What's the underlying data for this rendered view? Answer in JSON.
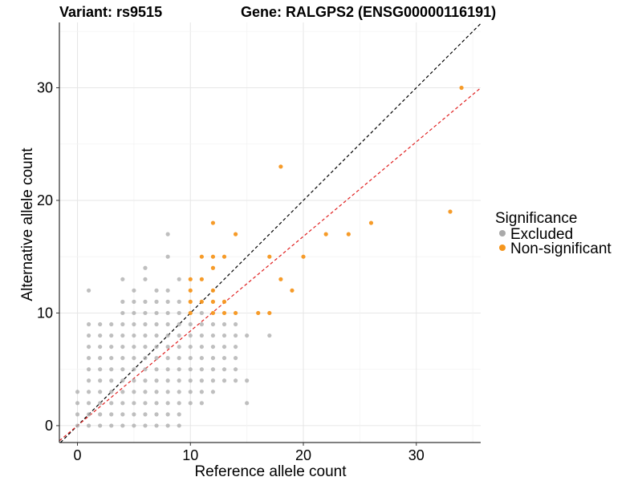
{
  "chart_data": {
    "type": "scatter",
    "title_left": "Variant: rs9515",
    "title_right": "Gene: RALGPS2 (ENSG00000116191)",
    "xlabel": "Reference allele count",
    "ylabel": "Alternative allele count",
    "xlim": [
      -1.6,
      35.7
    ],
    "ylim": [
      -1.5,
      35.8
    ],
    "x_ticks": [
      0,
      10,
      20,
      30
    ],
    "y_ticks": [
      0,
      10,
      20,
      30
    ],
    "grid": true,
    "legend": {
      "title": "Significance",
      "position": "right",
      "entries": [
        {
          "label": "Excluded",
          "color": "#aaaaaa"
        },
        {
          "label": "Non-significant",
          "color": "#f5961e"
        }
      ]
    },
    "reference_lines": [
      {
        "slope": 1,
        "intercept": 0,
        "color": "#000000",
        "dash": true
      },
      {
        "slope": 0.84,
        "intercept": 0,
        "color": "#e02020",
        "dash": true
      }
    ],
    "series": [
      {
        "name": "Excluded",
        "color": "#aaaaaa",
        "points": [
          [
            0,
            0
          ],
          [
            0,
            1
          ],
          [
            0,
            2
          ],
          [
            0,
            3
          ],
          [
            1,
            0
          ],
          [
            1,
            1
          ],
          [
            1,
            2
          ],
          [
            1,
            3
          ],
          [
            1,
            4
          ],
          [
            1,
            5
          ],
          [
            1,
            6
          ],
          [
            1,
            7
          ],
          [
            1,
            8
          ],
          [
            1,
            9
          ],
          [
            1,
            12
          ],
          [
            2,
            0
          ],
          [
            2,
            1
          ],
          [
            2,
            2
          ],
          [
            2,
            3
          ],
          [
            2,
            4
          ],
          [
            2,
            5
          ],
          [
            2,
            6
          ],
          [
            2,
            7
          ],
          [
            2,
            8
          ],
          [
            2,
            9
          ],
          [
            3,
            0
          ],
          [
            3,
            1
          ],
          [
            3,
            2
          ],
          [
            3,
            3
          ],
          [
            3,
            4
          ],
          [
            3,
            5
          ],
          [
            3,
            6
          ],
          [
            3,
            7
          ],
          [
            3,
            8
          ],
          [
            3,
            9
          ],
          [
            4,
            0
          ],
          [
            4,
            1
          ],
          [
            4,
            2
          ],
          [
            4,
            3
          ],
          [
            4,
            4
          ],
          [
            4,
            5
          ],
          [
            4,
            6
          ],
          [
            4,
            7
          ],
          [
            4,
            8
          ],
          [
            4,
            9
          ],
          [
            4,
            10
          ],
          [
            4,
            11
          ],
          [
            4,
            13
          ],
          [
            5,
            0
          ],
          [
            5,
            1
          ],
          [
            5,
            2
          ],
          [
            5,
            3
          ],
          [
            5,
            4
          ],
          [
            5,
            5
          ],
          [
            5,
            6
          ],
          [
            5,
            7
          ],
          [
            5,
            8
          ],
          [
            5,
            9
          ],
          [
            5,
            10
          ],
          [
            5,
            11
          ],
          [
            5,
            12
          ],
          [
            6,
            0
          ],
          [
            6,
            1
          ],
          [
            6,
            2
          ],
          [
            6,
            3
          ],
          [
            6,
            4
          ],
          [
            6,
            5
          ],
          [
            6,
            6
          ],
          [
            6,
            7
          ],
          [
            6,
            8
          ],
          [
            6,
            9
          ],
          [
            6,
            10
          ],
          [
            6,
            11
          ],
          [
            6,
            13
          ],
          [
            6,
            14
          ],
          [
            7,
            0
          ],
          [
            7,
            1
          ],
          [
            7,
            2
          ],
          [
            7,
            3
          ],
          [
            7,
            4
          ],
          [
            7,
            5
          ],
          [
            7,
            6
          ],
          [
            7,
            7
          ],
          [
            7,
            8
          ],
          [
            7,
            9
          ],
          [
            7,
            10
          ],
          [
            7,
            11
          ],
          [
            7,
            12
          ],
          [
            8,
            0
          ],
          [
            8,
            1
          ],
          [
            8,
            2
          ],
          [
            8,
            3
          ],
          [
            8,
            4
          ],
          [
            8,
            5
          ],
          [
            8,
            6
          ],
          [
            8,
            7
          ],
          [
            8,
            8
          ],
          [
            8,
            9
          ],
          [
            8,
            10
          ],
          [
            8,
            11
          ],
          [
            8,
            12
          ],
          [
            8,
            15
          ],
          [
            8,
            17
          ],
          [
            9,
            0
          ],
          [
            9,
            1
          ],
          [
            9,
            2
          ],
          [
            9,
            3
          ],
          [
            9,
            4
          ],
          [
            9,
            5
          ],
          [
            9,
            6
          ],
          [
            9,
            7
          ],
          [
            9,
            8
          ],
          [
            9,
            9
          ],
          [
            9,
            10
          ],
          [
            9,
            11
          ],
          [
            9,
            13
          ],
          [
            10,
            2
          ],
          [
            10,
            3
          ],
          [
            10,
            4
          ],
          [
            10,
            5
          ],
          [
            10,
            6
          ],
          [
            10,
            7
          ],
          [
            10,
            8
          ],
          [
            10,
            9
          ],
          [
            11,
            2
          ],
          [
            11,
            3
          ],
          [
            11,
            4
          ],
          [
            11,
            5
          ],
          [
            11,
            6
          ],
          [
            11,
            7
          ],
          [
            11,
            8
          ],
          [
            11,
            9
          ],
          [
            11,
            10
          ],
          [
            12,
            3
          ],
          [
            12,
            4
          ],
          [
            12,
            5
          ],
          [
            12,
            6
          ],
          [
            12,
            7
          ],
          [
            12,
            8
          ],
          [
            12,
            9
          ],
          [
            13,
            4
          ],
          [
            13,
            5
          ],
          [
            13,
            6
          ],
          [
            13,
            7
          ],
          [
            13,
            8
          ],
          [
            13,
            9
          ],
          [
            14,
            4
          ],
          [
            14,
            5
          ],
          [
            14,
            6
          ],
          [
            14,
            7
          ],
          [
            14,
            8
          ],
          [
            14,
            9
          ],
          [
            15,
            2
          ],
          [
            15,
            4
          ],
          [
            15,
            8
          ],
          [
            17,
            8
          ]
        ]
      },
      {
        "name": "Non-significant",
        "color": "#f5961e",
        "points": [
          [
            10,
            10
          ],
          [
            10,
            11
          ],
          [
            10,
            12
          ],
          [
            10,
            13
          ],
          [
            11,
            11
          ],
          [
            11,
            13
          ],
          [
            11,
            15
          ],
          [
            12,
            10
          ],
          [
            12,
            11
          ],
          [
            12,
            12
          ],
          [
            12,
            14
          ],
          [
            12,
            15
          ],
          [
            12,
            18
          ],
          [
            13,
            10
          ],
          [
            13,
            11
          ],
          [
            13,
            15
          ],
          [
            14,
            10
          ],
          [
            14,
            17
          ],
          [
            16,
            10
          ],
          [
            17,
            10
          ],
          [
            17,
            15
          ],
          [
            18,
            13
          ],
          [
            18,
            23
          ],
          [
            19,
            12
          ],
          [
            20,
            15
          ],
          [
            22,
            17
          ],
          [
            24,
            17
          ],
          [
            26,
            18
          ],
          [
            33,
            19
          ],
          [
            34,
            30
          ]
        ]
      }
    ]
  }
}
